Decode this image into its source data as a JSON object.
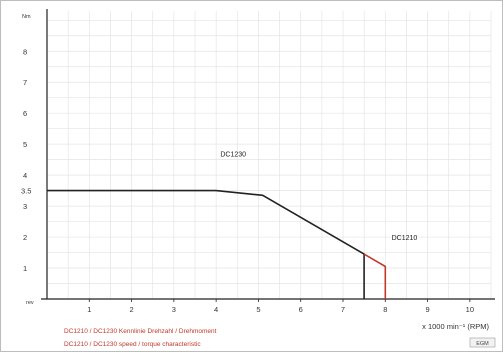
{
  "chart_data": {
    "type": "line",
    "xlim": [
      0,
      10.5
    ],
    "ylim": [
      0,
      9.3
    ],
    "x_ticks": [
      "1",
      "2",
      "3",
      "4",
      "5",
      "6",
      "7",
      "8",
      "9",
      "10"
    ],
    "y_ticks": [
      "1",
      "2",
      "3",
      "4",
      "5",
      "6",
      "7",
      "8"
    ],
    "y_special_tick": "3.5",
    "y_unit_label": "Nm",
    "y_zero_label": "rev",
    "xlabel": "x 1000 min⁻¹ (RPM)",
    "grid": true,
    "series": [
      {
        "name": "DC1230",
        "color": "#222222",
        "x": [
          0,
          4.0,
          5.1,
          7.5,
          7.5
        ],
        "y": [
          3.5,
          3.5,
          3.35,
          1.45,
          0
        ]
      },
      {
        "name": "DC1210",
        "color": "#c0392b",
        "x": [
          7.5,
          8.0,
          8.0
        ],
        "y": [
          1.45,
          1.05,
          0
        ]
      }
    ],
    "annotations": [
      {
        "text": "DC1230",
        "x": 4.1,
        "y": 4.6,
        "color": "#222222"
      },
      {
        "text": "DC1210",
        "x": 8.15,
        "y": 1.9,
        "color": "#c0392b"
      }
    ]
  },
  "footnotes": [
    "DC1210 / DC1230 Kennlinie Drehzahl / Drehmoment",
    "DC1210 / DC1230 speed / torque characteristic"
  ],
  "logo_text": "EGM",
  "colors": {
    "footnote": "#c0392b",
    "axis": "#222222",
    "grid": "#e4e4e4"
  }
}
